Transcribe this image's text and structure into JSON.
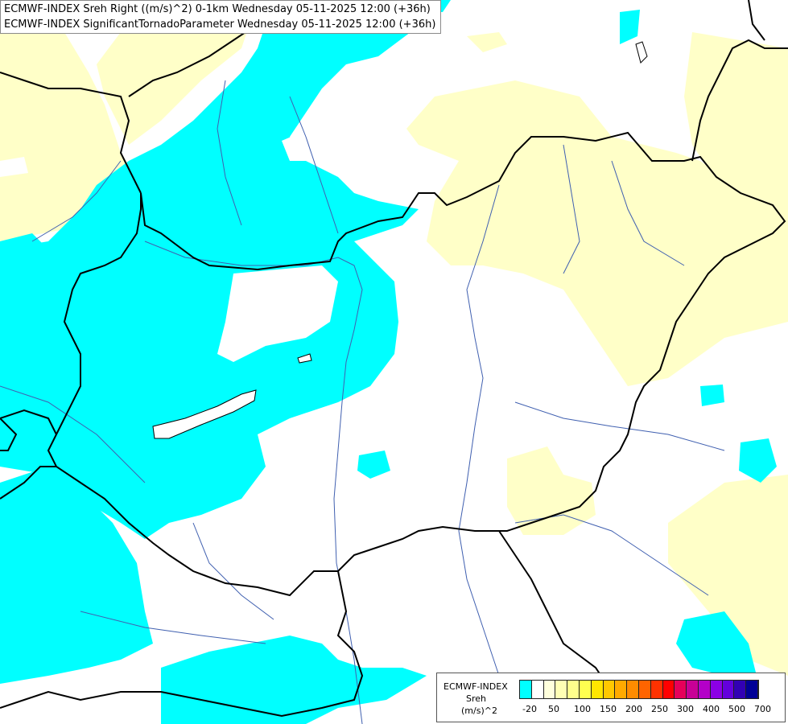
{
  "title": {
    "line1": "ECMWF-INDEX Sreh Right ((m/s)^2) 0-1km Wednesday 05-11-2025 12:00 (+36h)",
    "line2": "ECMWF-INDEX SignificantTornadoParameter Wednesday 05-11-2025 12:00 (+36h)"
  },
  "colors": {
    "cyan": "#00ffff",
    "pale_yellow": "#ffffc8",
    "border": "#000000",
    "river": "#4060b0"
  },
  "legend": {
    "source": "ECMWF-INDEX",
    "variable": "Sreh",
    "unit": "(m/s)^2",
    "colors": [
      "#00ffff",
      "#ffffff",
      "#ffffdc",
      "#ffffb4",
      "#ffff8c",
      "#ffff50",
      "#ffe600",
      "#ffc800",
      "#ffaa00",
      "#ff8c00",
      "#ff6400",
      "#ff3200",
      "#ff0000",
      "#e6005a",
      "#c80096",
      "#b400c8",
      "#8c00e6",
      "#6400dc",
      "#3200b4",
      "#000096"
    ],
    "ticks": [
      "-20",
      "50",
      "100",
      "150",
      "200",
      "250",
      "300",
      "400",
      "500",
      "700"
    ]
  }
}
